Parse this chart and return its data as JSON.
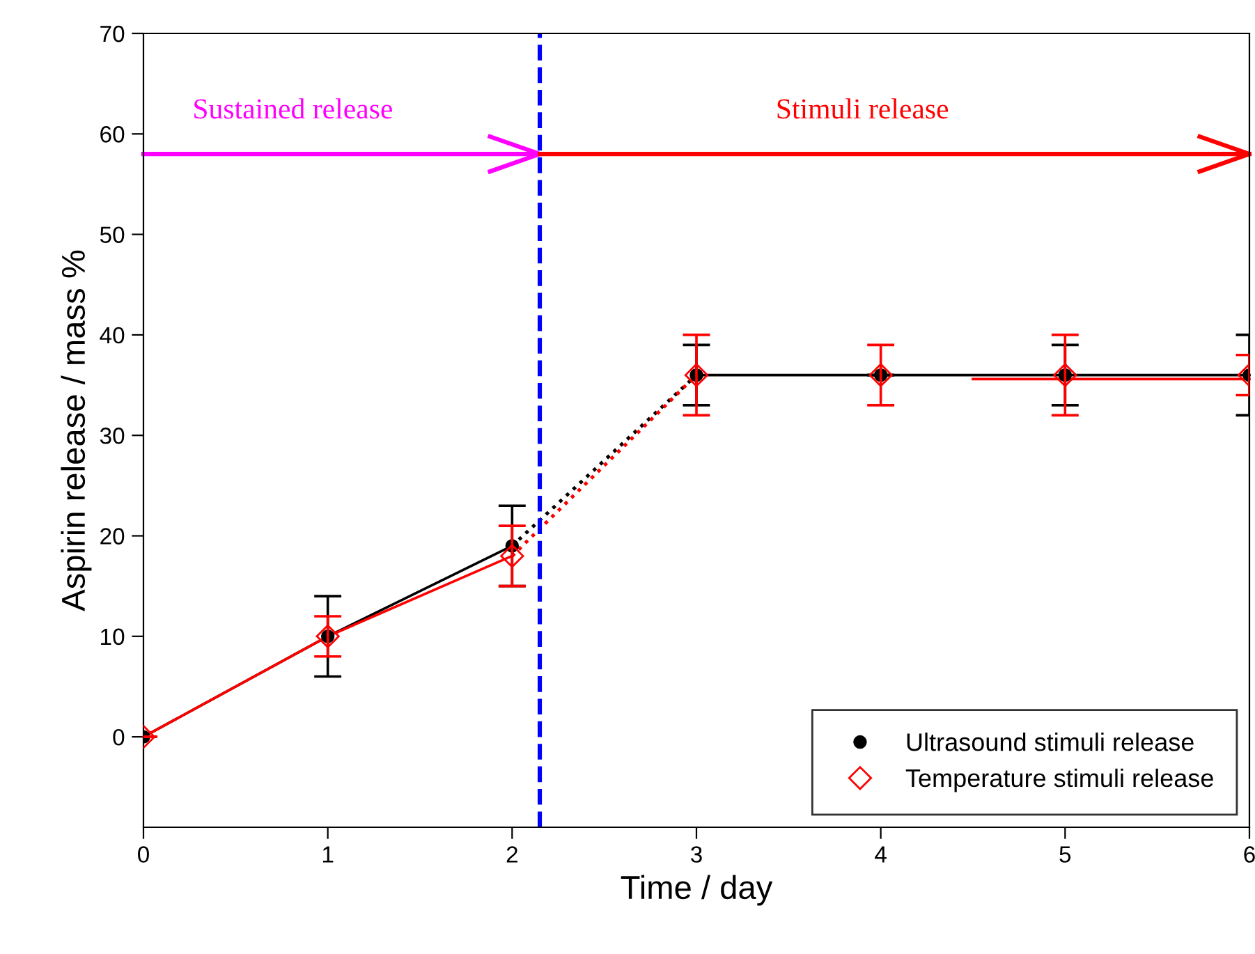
{
  "chart_data": {
    "type": "scatter",
    "xlabel": "Time / day",
    "ylabel": "Aspirin release / mass %",
    "xlim": [
      0,
      6
    ],
    "xticks": [
      0,
      1,
      2,
      3,
      4,
      5,
      6
    ],
    "ylim": [
      -9,
      70
    ],
    "yticks": [
      0,
      10,
      20,
      30,
      40,
      50,
      60,
      70
    ],
    "grid": false,
    "legend": "bottom right",
    "series": [
      {
        "type": "line",
        "color": "#000000",
        "x": [
          0,
          1,
          2
        ],
        "values": [
          0,
          10,
          19
        ],
        "line_style": "solid",
        "marker": "none"
      },
      {
        "type": "line",
        "color": "#000000",
        "x": [
          2,
          3
        ],
        "values": [
          19,
          36
        ],
        "line_style": "dotted",
        "marker": "none"
      },
      {
        "type": "line",
        "color": "#000000",
        "x": [
          3,
          4,
          5,
          6
        ],
        "values": [
          36,
          36,
          36,
          36
        ],
        "line_style": "solid",
        "marker": "none"
      },
      {
        "type": "line",
        "color": "#ff0000",
        "x": [
          0,
          1,
          2
        ],
        "values": [
          0,
          10,
          18
        ],
        "line_style": "solid",
        "marker": "none"
      },
      {
        "type": "line",
        "color": "#ff0000",
        "x": [
          2,
          3
        ],
        "values": [
          18,
          36
        ],
        "line_style": "dotted",
        "marker": "none"
      },
      {
        "type": "line",
        "color": "#ff0000",
        "x": [
          4.5,
          6
        ],
        "values": [
          35.6,
          35.6
        ],
        "line_style": "solid",
        "marker": "none"
      },
      {
        "name": "Ultrasound stimuli release",
        "color": "#000000",
        "marker": "circle",
        "x": [
          0,
          1,
          2,
          3,
          4,
          5,
          6
        ],
        "values": [
          0,
          10,
          19,
          36,
          36,
          36,
          36
        ],
        "errors": [
          null,
          4,
          4,
          3,
          null,
          3,
          4
        ]
      },
      {
        "name": "Temperature stimuli release",
        "color": "#ff0000",
        "marker": "diamond",
        "x": [
          0,
          1,
          2,
          3,
          4,
          5,
          6
        ],
        "values": [
          0,
          10,
          18,
          36,
          36,
          36,
          36
        ],
        "errors": [
          null,
          2,
          3,
          4,
          3,
          4,
          2
        ]
      },
      {
        "type": "line",
        "color": "#ff00ff",
        "x": [
          0,
          2.15
        ],
        "values": [
          58,
          58
        ],
        "line_style": "solid",
        "marker": "none"
      },
      {
        "type": "line",
        "color": "#ff0000",
        "x": [
          2.15,
          6
        ],
        "values": [
          58,
          58
        ],
        "line_style": "solid",
        "marker": "none"
      }
    ],
    "ref_lines": [
      {
        "axis": "x",
        "value": 2.15,
        "color": "#0000ff",
        "line_style": "dashed"
      }
    ],
    "annotations": [
      {
        "text": "Sustained release",
        "x": 0.81,
        "y": 58
      },
      {
        "text": "Stimuli release",
        "x": 3.9,
        "y": 58
      }
    ]
  }
}
